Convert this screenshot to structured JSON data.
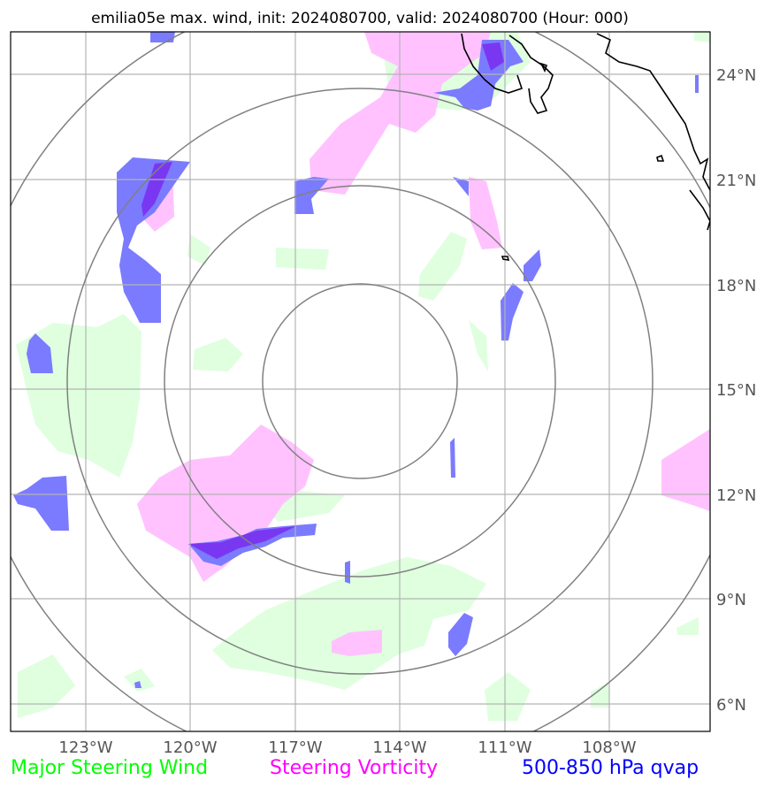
{
  "title": "emilia05e max. wind, init: 2024080700, valid: 2024080700 (Hour: 000)",
  "lon_ticks": [
    "123°W",
    "120°W",
    "117°W",
    "114°W",
    "111°W",
    "108°W"
  ],
  "lat_ticks": [
    "24°N",
    "21°N",
    "18°N",
    "15°N",
    "12°N",
    "9°N",
    "6°N"
  ],
  "legend": {
    "wind": "Major Steering Wind",
    "vorticity": "Steering Vorticity",
    "qvap": "500-850 hPa qvap"
  },
  "colors": {
    "wind": "#00ff00",
    "vorticity": "#ff00ff",
    "qvap": "#0000ff",
    "wind_fill": "#dfffdf",
    "vorticity_fill": "#ffc2ff",
    "qvap_fill": "#7b7bff",
    "grid": "#b3b3b3",
    "range_ring": "#808080",
    "coast": "#000000"
  }
}
